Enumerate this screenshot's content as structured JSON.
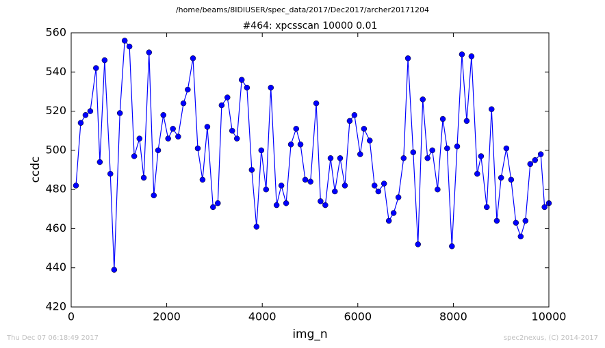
{
  "chart_data": {
    "type": "line",
    "suptitle": "/home/beams/8IDIUSER/spec_data/2017/Dec2017/archer20171204",
    "title": "#464: xpcsscan 10000 0.01",
    "xlabel": "img_n",
    "ylabel": "ccdc",
    "footer_left": "Thu Dec 07 06:18:49 2017",
    "footer_right": "spec2nexus, (C) 2014-2017",
    "color": "#0000ff",
    "x": [
      100,
      200,
      300,
      400,
      520,
      600,
      700,
      820,
      900,
      1020,
      1120,
      1220,
      1320,
      1430,
      1520,
      1630,
      1730,
      1820,
      1930,
      2030,
      2130,
      2240,
      2350,
      2440,
      2550,
      2650,
      2750,
      2850,
      2970,
      3070,
      3150,
      3270,
      3370,
      3470,
      3570,
      3680,
      3780,
      3880,
      3980,
      4080,
      4180,
      4300,
      4400,
      4500,
      4600,
      4710,
      4800,
      4900,
      5010,
      5130,
      5220,
      5320,
      5430,
      5520,
      5630,
      5730,
      5830,
      5930,
      6050,
      6130,
      6250,
      6350,
      6430,
      6550,
      6650,
      6750,
      6850,
      6960,
      7050,
      7160,
      7260,
      7360,
      7460,
      7560,
      7670,
      7780,
      7870,
      7970,
      8080,
      8180,
      8280,
      8380,
      8500,
      8580,
      8700,
      8800,
      8910,
      9000,
      9110,
      9210,
      9310,
      9410,
      9510,
      9610,
      9710,
      9830,
      9910,
      10000
    ],
    "values": [
      482,
      514,
      518,
      520,
      542,
      494,
      546,
      488,
      439,
      519,
      556,
      553,
      497,
      506,
      486,
      550,
      477,
      500,
      518,
      506,
      511,
      507,
      524,
      531,
      547,
      501,
      485,
      512,
      471,
      473,
      523,
      527,
      510,
      506,
      536,
      532,
      490,
      461,
      500,
      480,
      532,
      472,
      482,
      473,
      503,
      511,
      503,
      485,
      484,
      524,
      474,
      472,
      496,
      479,
      496,
      482,
      515,
      518,
      498,
      511,
      505,
      482,
      479,
      483,
      464,
      468,
      476,
      496,
      547,
      499,
      452,
      526,
      496,
      500,
      480,
      516,
      501,
      451,
      502,
      549,
      515,
      548,
      488,
      497,
      471,
      521,
      464,
      486,
      501,
      485,
      463,
      456,
      464,
      493,
      495,
      498,
      471,
      473
    ],
    "xlim": [
      0,
      10000
    ],
    "xticks": [
      0,
      2000,
      4000,
      6000,
      8000,
      10000
    ],
    "ylim": [
      420,
      560
    ],
    "yticks": [
      420,
      440,
      460,
      480,
      500,
      520,
      540,
      560
    ]
  }
}
